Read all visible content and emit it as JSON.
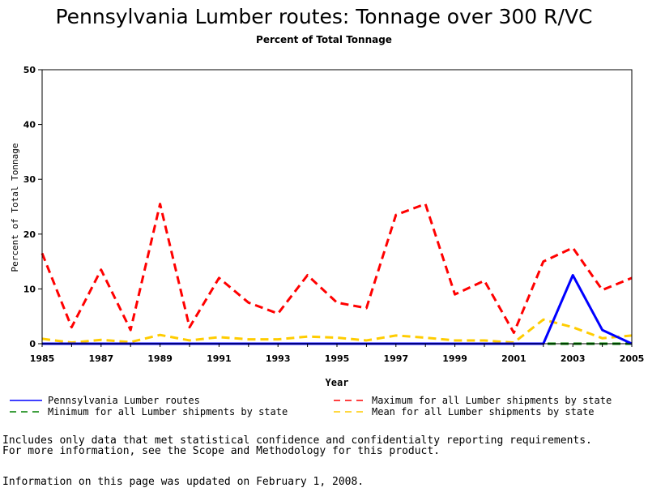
{
  "title": "Pennsylvania Lumber routes: Tonnage over 300 R/VC",
  "subtitle": "Percent of Total Tonnage",
  "footnote_line1": "Includes only data that met statistical confidence and confidentialty reporting requirements.",
  "footnote_line2": "For more information, see the Scope and Methodology for this product.",
  "updated": "Information on this page was updated on February 1, 2008.",
  "chart_data": {
    "type": "line",
    "xlabel": "Year",
    "ylabel": "Percent of Total Tonnage",
    "xlim": [
      1985,
      2005
    ],
    "ylim": [
      0,
      50
    ],
    "xticks": [
      "1985",
      "1987",
      "1989",
      "1991",
      "1993",
      "1995",
      "1997",
      "1999",
      "2001",
      "2003",
      "2005"
    ],
    "yticks": [
      "0",
      "10",
      "20",
      "30",
      "40",
      "50"
    ],
    "x": [
      1985,
      1986,
      1987,
      1988,
      1989,
      1990,
      1991,
      1992,
      1993,
      1994,
      1995,
      1996,
      1997,
      1998,
      1999,
      2000,
      2001,
      2002,
      2003,
      2004,
      2005
    ],
    "series": [
      {
        "name": "Pennsylvania Lumber routes",
        "color": "#0000ff",
        "dash": "solid",
        "values": [
          0,
          0,
          0,
          0,
          0,
          0,
          0,
          0,
          0,
          0,
          0,
          0,
          0,
          0,
          0,
          0,
          0,
          0,
          12.5,
          2.5,
          0
        ]
      },
      {
        "name": "Maximum for all Lumber shipments by state",
        "color": "#ff0000",
        "dash": "dashed",
        "values": [
          16.5,
          3,
          13.5,
          2.5,
          25.5,
          3,
          12,
          7.5,
          5.5,
          12.5,
          7.5,
          6.5,
          23.5,
          25.5,
          9,
          11.5,
          2,
          15,
          17.5,
          9.8,
          12
        ]
      },
      {
        "name": "Minimum for all Lumber shipments by state",
        "color": "#008000",
        "dash": "dashed",
        "values": [
          0,
          0,
          0,
          0,
          0,
          0,
          0,
          0,
          0,
          0,
          0,
          0,
          0,
          0,
          0,
          0,
          0,
          0,
          0,
          0,
          0
        ]
      },
      {
        "name": "Mean for all Lumber shipments by state",
        "color": "#ffcc00",
        "dash": "dashed",
        "values": [
          0.9,
          0.2,
          0.7,
          0.3,
          1.6,
          0.6,
          1.2,
          0.8,
          0.8,
          1.3,
          1.1,
          0.6,
          1.5,
          1.1,
          0.6,
          0.6,
          0.2,
          4.4,
          3,
          1,
          1.5
        ]
      }
    ]
  }
}
